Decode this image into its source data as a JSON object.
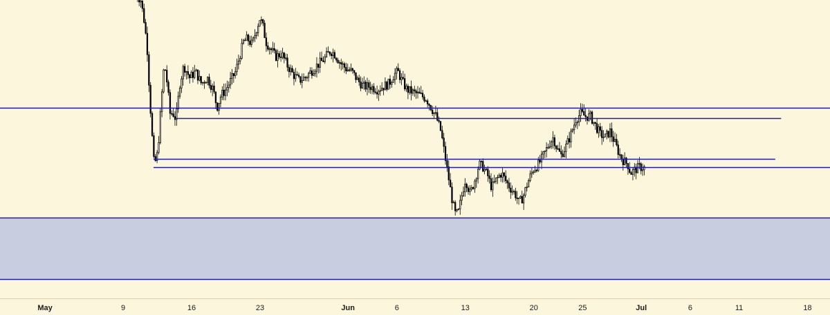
{
  "chart_data": {
    "type": "candlestick",
    "colors": {
      "background": "#fcf6dc",
      "level_line": "#1c1cb0",
      "zone_fill": "#c9cde0",
      "candle": "#000000",
      "axis_text": "#1a1a1a"
    },
    "x_axis": {
      "ticks": [
        {
          "label": "May",
          "day": 1,
          "bold": true
        },
        {
          "label": "9",
          "day": 9,
          "bold": false
        },
        {
          "label": "16",
          "day": 16,
          "bold": false
        },
        {
          "label": "23",
          "day": 23,
          "bold": false
        },
        {
          "label": "Jun",
          "day": 32,
          "bold": true
        },
        {
          "label": "6",
          "day": 37,
          "bold": false
        },
        {
          "label": "13",
          "day": 44,
          "bold": false
        },
        {
          "label": "20",
          "day": 51,
          "bold": false
        },
        {
          "label": "25",
          "day": 56,
          "bold": false
        },
        {
          "label": "Jul",
          "day": 62,
          "bold": true
        },
        {
          "label": "6",
          "day": 67,
          "bold": false
        },
        {
          "label": "11",
          "day": 72,
          "bold": false
        },
        {
          "label": "18",
          "day": 79,
          "bold": false
        }
      ],
      "range_days": [
        -3.6,
        81.3
      ]
    },
    "y_range": [
      0,
      100
    ],
    "levels": [
      {
        "value": 63.8,
        "from_day": -3.6,
        "to_day": 81.3
      },
      {
        "value": 60.4,
        "from_day": 14.3,
        "to_day": 76.3
      },
      {
        "value": 46.8,
        "from_day": 12.1,
        "to_day": 75.7
      },
      {
        "value": 44.0,
        "from_day": 12.1,
        "to_day": 81.3
      },
      {
        "value": 27.1,
        "from_day": -3.6,
        "to_day": 81.3
      },
      {
        "value": 6.5,
        "from_day": -3.6,
        "to_day": 81.3
      }
    ],
    "zone": {
      "from_value": 6.5,
      "to_value": 27.1
    },
    "candles": {
      "interval_hours": 4,
      "start_day": 10.3,
      "anchors": [
        [
          10.3,
          102
        ],
        [
          10.8,
          100
        ],
        [
          11.2,
          92
        ],
        [
          11.5,
          82
        ],
        [
          11.7,
          68
        ],
        [
          11.9,
          58
        ],
        [
          12.1,
          46
        ],
        [
          12.4,
          46
        ],
        [
          12.6,
          52
        ],
        [
          12.9,
          66
        ],
        [
          13.2,
          79
        ],
        [
          13.5,
          72
        ],
        [
          13.8,
          62
        ],
        [
          14.1,
          62
        ],
        [
          14.4,
          60
        ],
        [
          14.8,
          72
        ],
        [
          15.2,
          78
        ],
        [
          15.8,
          74
        ],
        [
          16.4,
          76
        ],
        [
          17.0,
          72
        ],
        [
          17.6,
          74
        ],
        [
          18.2,
          70
        ],
        [
          18.6,
          64
        ],
        [
          19.0,
          68
        ],
        [
          19.5,
          70
        ],
        [
          20.0,
          73
        ],
        [
          20.5,
          76
        ],
        [
          20.9,
          81
        ],
        [
          21.3,
          86
        ],
        [
          21.7,
          87
        ],
        [
          22.2,
          85
        ],
        [
          22.6,
          90
        ],
        [
          23.0,
          94
        ],
        [
          23.3,
          91
        ],
        [
          23.6,
          86
        ],
        [
          24.0,
          84
        ],
        [
          24.6,
          81
        ],
        [
          25.2,
          82
        ],
        [
          25.8,
          78
        ],
        [
          26.4,
          75
        ],
        [
          27.0,
          73
        ],
        [
          27.6,
          74
        ],
        [
          28.2,
          76
        ],
        [
          28.8,
          78
        ],
        [
          29.5,
          80
        ],
        [
          30.2,
          83
        ],
        [
          30.6,
          82
        ],
        [
          31.2,
          79
        ],
        [
          31.8,
          77
        ],
        [
          32.4,
          76
        ],
        [
          33.0,
          73
        ],
        [
          33.6,
          71
        ],
        [
          34.3,
          71
        ],
        [
          35.0,
          70
        ],
        [
          35.6,
          71
        ],
        [
          36.2,
          72
        ],
        [
          36.7,
          75
        ],
        [
          37.1,
          76
        ],
        [
          37.5,
          73
        ],
        [
          38.0,
          70
        ],
        [
          38.7,
          69
        ],
        [
          39.4,
          68
        ],
        [
          40.0,
          67
        ],
        [
          40.5,
          64
        ],
        [
          41.0,
          61
        ],
        [
          41.5,
          56
        ],
        [
          41.9,
          48
        ],
        [
          42.3,
          40
        ],
        [
          42.7,
          32
        ],
        [
          43.0,
          28
        ],
        [
          43.3,
          29
        ],
        [
          43.6,
          34
        ],
        [
          44.0,
          40
        ],
        [
          44.5,
          35
        ],
        [
          45.0,
          40
        ],
        [
          45.4,
          45
        ],
        [
          45.8,
          44
        ],
        [
          46.3,
          41
        ],
        [
          46.7,
          37
        ],
        [
          47.2,
          40
        ],
        [
          47.7,
          42
        ],
        [
          48.2,
          39
        ],
        [
          48.6,
          37
        ],
        [
          49.1,
          35
        ],
        [
          49.5,
          32
        ],
        [
          49.9,
          34
        ],
        [
          50.4,
          39
        ],
        [
          50.9,
          43
        ],
        [
          51.5,
          45
        ],
        [
          52.0,
          48
        ],
        [
          52.6,
          52
        ],
        [
          53.0,
          54
        ],
        [
          53.4,
          50
        ],
        [
          53.8,
          48
        ],
        [
          54.3,
          51
        ],
        [
          54.8,
          55
        ],
        [
          55.3,
          60
        ],
        [
          55.8,
          62
        ],
        [
          56.3,
          61
        ],
        [
          56.8,
          61
        ],
        [
          57.3,
          58
        ],
        [
          57.8,
          55
        ],
        [
          58.3,
          54
        ],
        [
          58.8,
          56
        ],
        [
          59.3,
          52
        ],
        [
          59.8,
          48
        ],
        [
          60.2,
          46
        ],
        [
          60.6,
          45
        ],
        [
          60.9,
          42
        ],
        [
          61.3,
          43
        ],
        [
          61.8,
          44
        ],
        [
          62.3,
          43.8
        ]
      ]
    }
  }
}
